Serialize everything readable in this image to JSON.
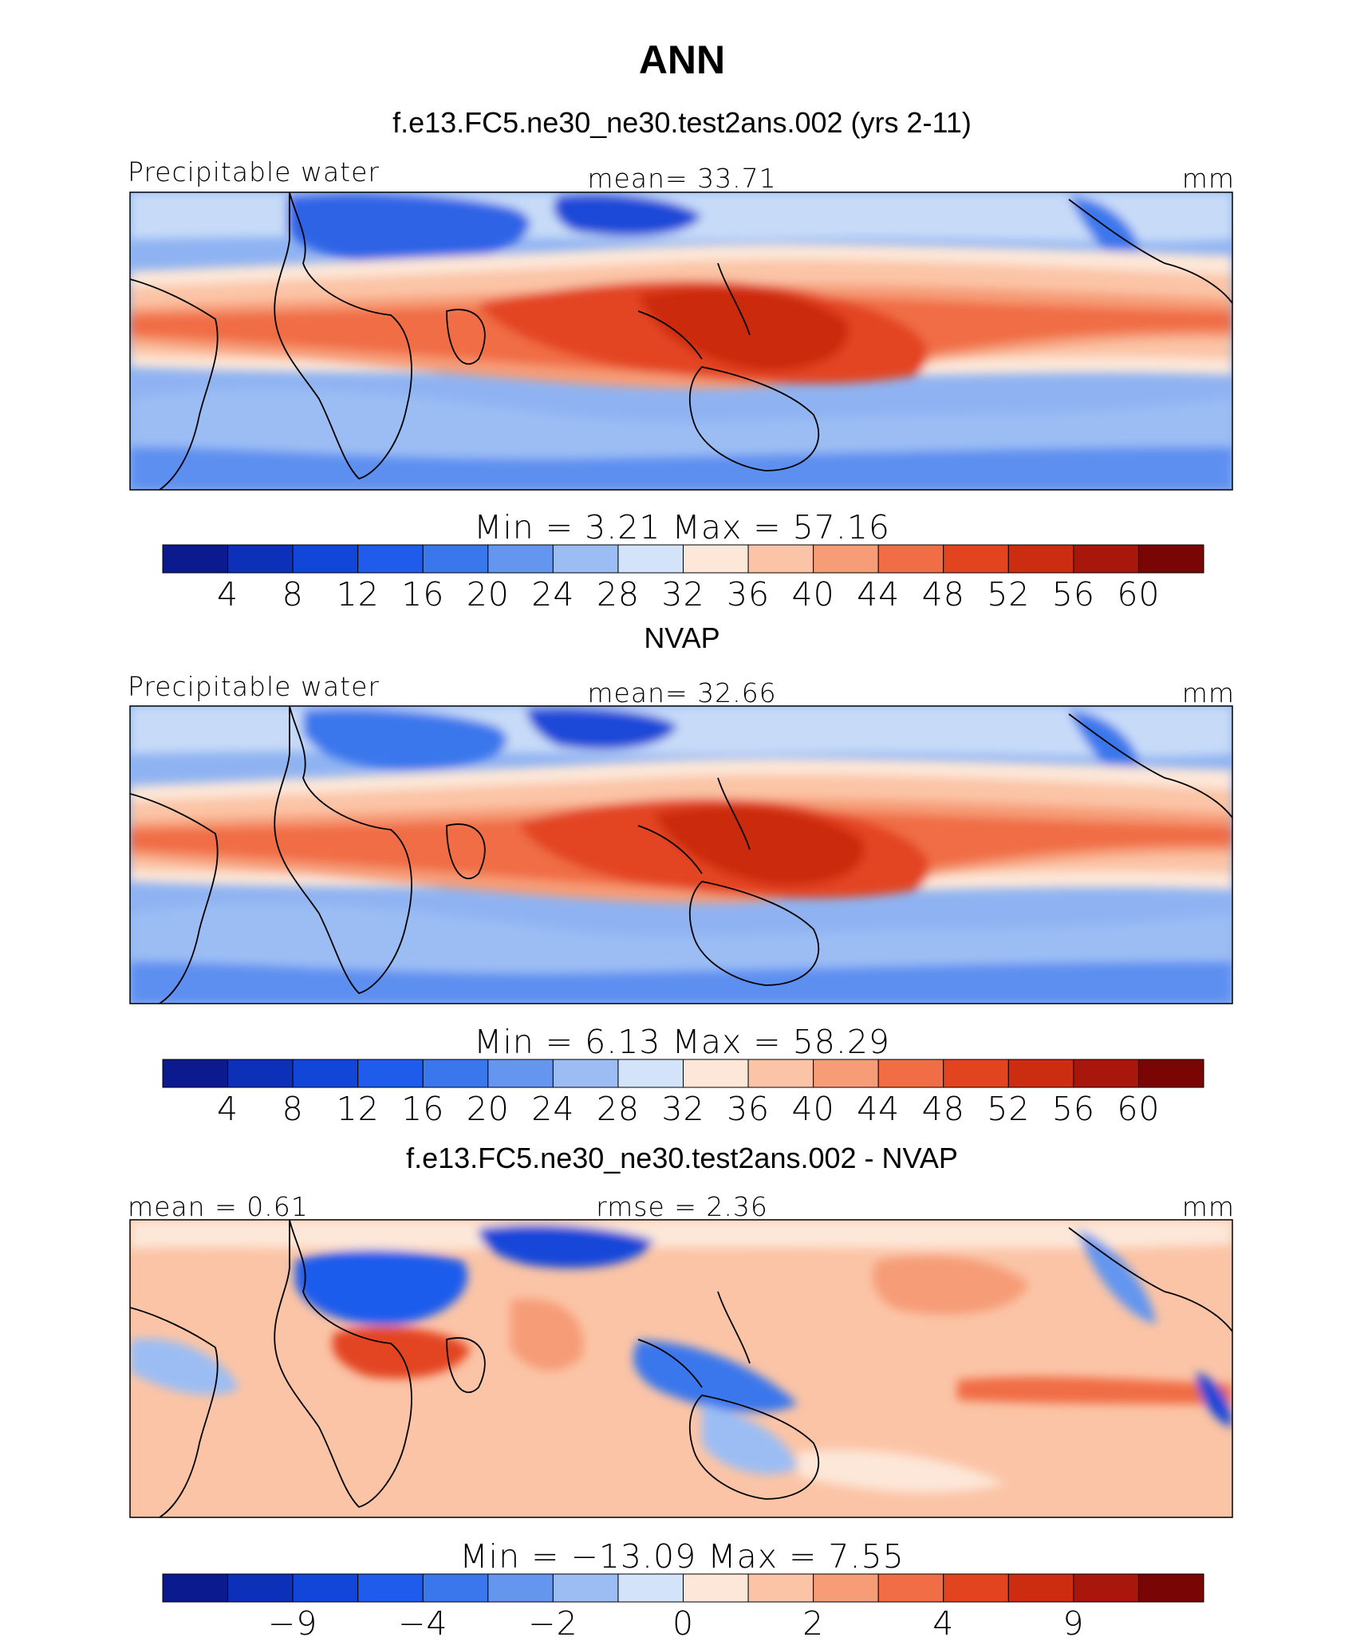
{
  "figure": {
    "season": "ANN",
    "panels": [
      {
        "title": "f.e13.FC5.ne30_ne30.test2ans.002 (yrs 2-11)",
        "left_label": "Precipitable water",
        "center_label": "mean=   33.71",
        "units": "mm",
        "stats": "Min  =     3.21  Max  =    57.16",
        "min": 3.21,
        "max": 57.16,
        "mean": 33.71,
        "palette": [
          "#0b1a8f",
          "#0d30b8",
          "#1246d8",
          "#1f5cec",
          "#3b77ec",
          "#6496ef",
          "#9bbdf4",
          "#d2e3fa",
          "#fde7d8",
          "#fbc4a6",
          "#f69c77",
          "#f06d45",
          "#e34420",
          "#cc2c10",
          "#a9160c",
          "#7a0505"
        ],
        "levels": [
          "4",
          "8",
          "12",
          "16",
          "20",
          "24",
          "28",
          "32",
          "36",
          "40",
          "44",
          "48",
          "52",
          "56",
          "60"
        ]
      },
      {
        "title": "NVAP",
        "left_label": "Precipitable water",
        "center_label": "mean=   32.66",
        "units": "mm",
        "stats": "Min  =     6.13  Max  =    58.29",
        "min": 6.13,
        "max": 58.29,
        "mean": 32.66,
        "palette": [
          "#0b1a8f",
          "#0d30b8",
          "#1246d8",
          "#1f5cec",
          "#3b77ec",
          "#6496ef",
          "#9bbdf4",
          "#d2e3fa",
          "#fde7d8",
          "#fbc4a6",
          "#f69c77",
          "#f06d45",
          "#e34420",
          "#cc2c10",
          "#a9160c",
          "#7a0505"
        ],
        "levels": [
          "4",
          "8",
          "12",
          "16",
          "20",
          "24",
          "28",
          "32",
          "36",
          "40",
          "44",
          "48",
          "52",
          "56",
          "60"
        ]
      },
      {
        "title": "f.e13.FC5.ne30_ne30.test2ans.002 - NVAP",
        "left_label": "mean  =    0.61",
        "center_label": "rmse  =    2.36",
        "units": "mm",
        "stats": "Min  = −13.09  Max  =     7.55",
        "min": -13.09,
        "max": 7.55,
        "mean": 0.61,
        "rmse": 2.36,
        "palette": [
          "#0b1a8f",
          "#0d30b8",
          "#1246d8",
          "#1f5cec",
          "#3b77ec",
          "#6496ef",
          "#9bbdf4",
          "#d2e3fa",
          "#fde7d8",
          "#fbc4a6",
          "#f69c77",
          "#f06d45",
          "#e34420",
          "#cc2c10",
          "#a9160c",
          "#7a0505"
        ],
        "levels": [
          "−9",
          "−4",
          "−2",
          "0",
          "2",
          "4",
          "9"
        ]
      }
    ]
  }
}
